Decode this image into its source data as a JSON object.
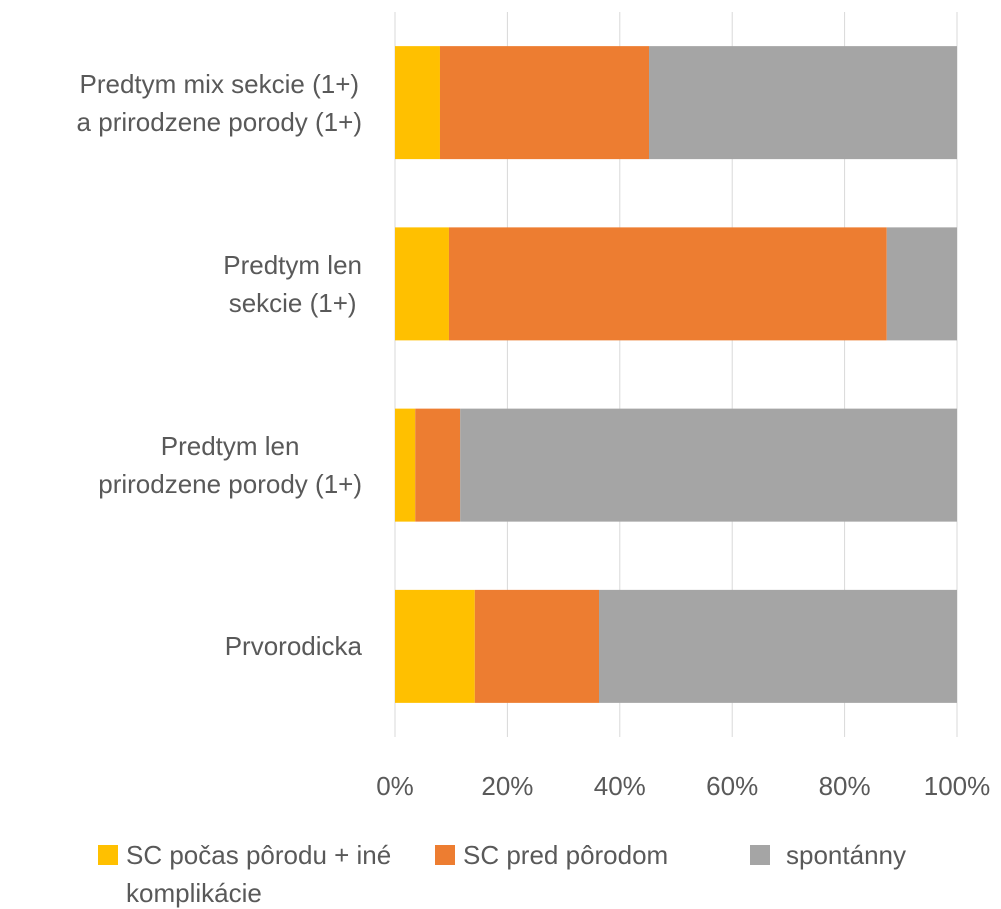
{
  "chart_data": {
    "type": "stacked_barh",
    "categories": [
      "Predtym mix sekcie (1+)\na prirodzene porody (1+)",
      "Predtym len\nsekcie (1+)",
      "Predtym len\nprirodzene porody (1+)",
      "Prvorodicka"
    ],
    "series": [
      {
        "name": "SC počas pôrodu + iné komplikácie",
        "color": "#ffc000",
        "values": [
          8,
          9.6,
          3.6,
          14.2
        ]
      },
      {
        "name": "SC pred pôrodom",
        "color": "#ed7d31",
        "values": [
          37.2,
          77.9,
          8,
          22.1
        ]
      },
      {
        "name": "spontánny",
        "color": "#a5a5a5",
        "values": [
          54.8,
          12.5,
          88.4,
          63.7
        ]
      }
    ],
    "xlim": [
      0,
      100
    ],
    "xticks": [
      {
        "value": 0,
        "label": "0%"
      },
      {
        "value": 20,
        "label": "20%"
      },
      {
        "value": 40,
        "label": "40%"
      },
      {
        "value": 60,
        "label": "60%"
      },
      {
        "value": 80,
        "label": "80%"
      },
      {
        "value": 100,
        "label": "100%"
      }
    ],
    "grid": true,
    "legend": "bottom"
  }
}
